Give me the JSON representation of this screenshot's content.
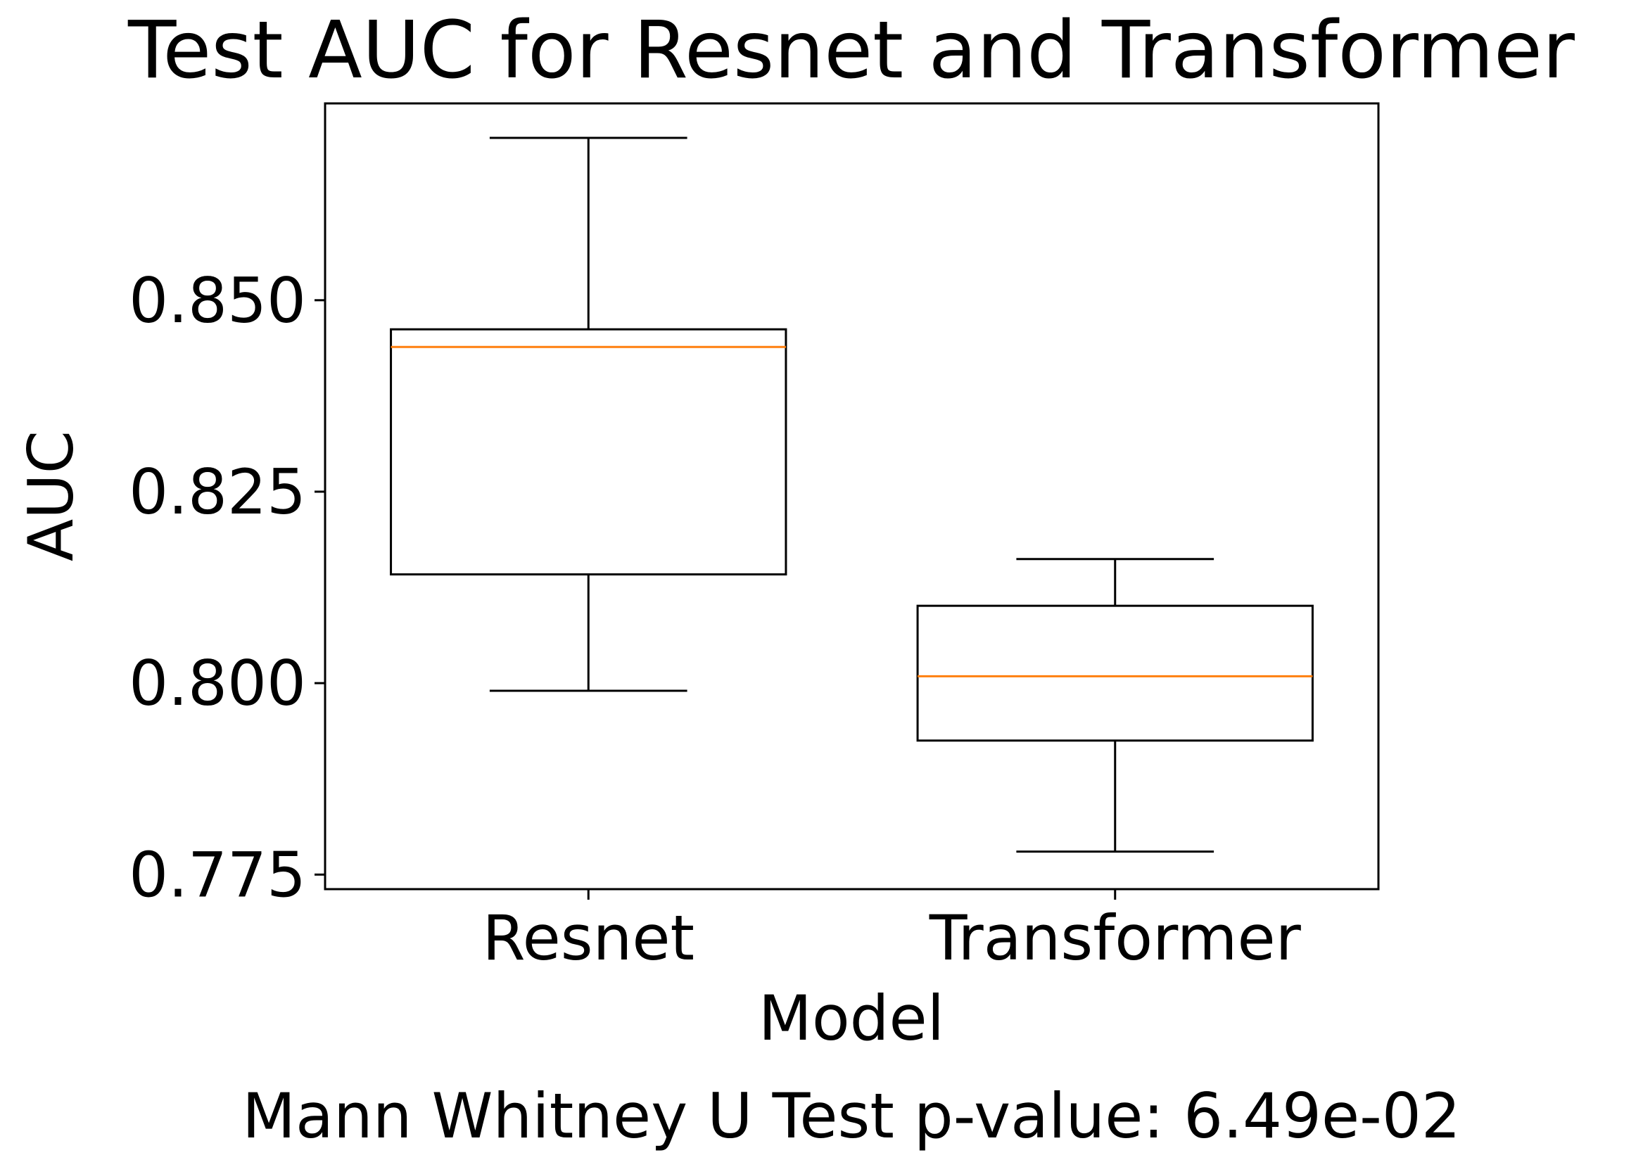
{
  "chart_data": {
    "type": "boxplot",
    "title": "Test AUC for Resnet and Transformer",
    "xlabel": "Model",
    "ylabel": "AUC",
    "footnote": "Mann Whitney U Test p-value: 6.49e-02",
    "categories": [
      "Resnet",
      "Transformer"
    ],
    "boxes": [
      {
        "category": "Resnet",
        "whisker_low": 0.799,
        "q1": 0.8142,
        "median": 0.8439,
        "q3": 0.8462,
        "whisker_high": 0.8712
      },
      {
        "category": "Transformer",
        "whisker_low": 0.778,
        "q1": 0.7925,
        "median": 0.8009,
        "q3": 0.8101,
        "whisker_high": 0.8162
      }
    ],
    "yticks": [
      0.775,
      0.8,
      0.825,
      0.85
    ],
    "ytick_labels": [
      "0.775",
      "0.800",
      "0.825",
      "0.850"
    ],
    "ylim": [
      0.7731,
      0.8757
    ],
    "grid": false,
    "legend": "none",
    "colors": {
      "box": "#000000",
      "median": "#ff7f0e",
      "axes": "#000000"
    }
  }
}
